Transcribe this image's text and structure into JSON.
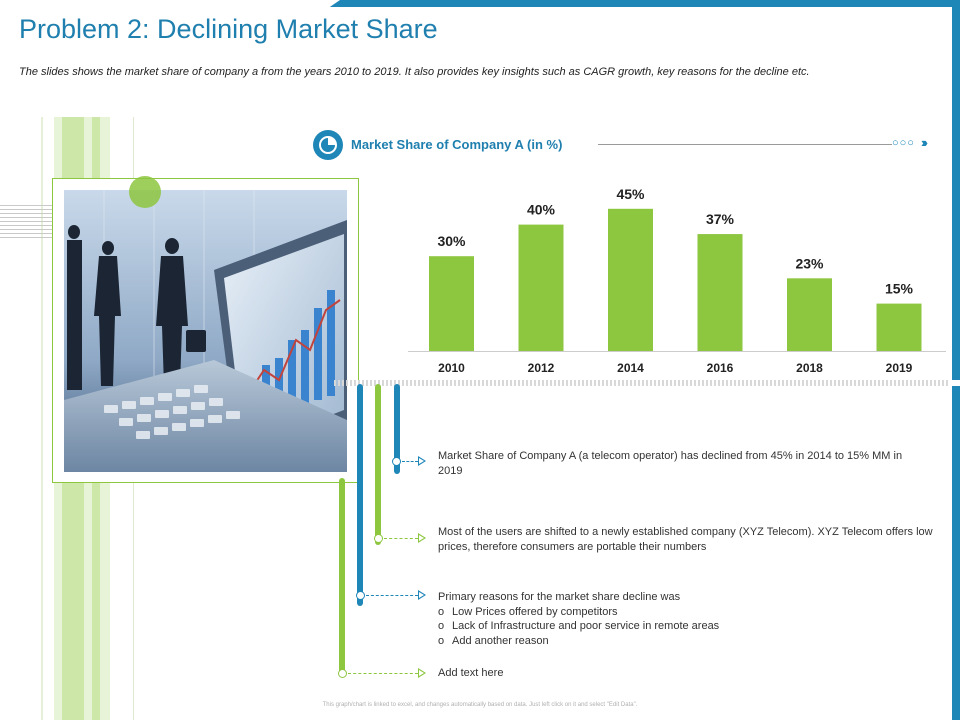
{
  "slide": {
    "title": "Problem 2: Declining Market Share",
    "subtitle": "The slides shows the market share of company a from the years 2010 to 2019. It also provides key insights such as CAGR growth, key reasons for the decline etc.",
    "footnote": "This graph/chart is linked to excel, and changes automatically based on data. Just left click on it and select \"Edit Data\"."
  },
  "chart_header": {
    "title": "Market Share of Company A (in %)",
    "dots": "○○○",
    "chevrons": "›››"
  },
  "chart_data": {
    "type": "bar",
    "title": "Market Share of Company A (in %)",
    "categories": [
      "2010",
      "2012",
      "2014",
      "2016",
      "2018",
      "2019"
    ],
    "values": [
      30,
      40,
      45,
      37,
      23,
      15
    ],
    "value_labels": [
      "30%",
      "40%",
      "45%",
      "37%",
      "23%",
      "15%"
    ],
    "ylim": [
      0,
      50
    ],
    "grid": false,
    "legend": "none",
    "bar_color": "#8dc63f"
  },
  "notes": {
    "n1": "Market Share of Company A (a telecom operator) has declined from 45% in 2014 to 15% MM in 2019",
    "n2": "Most of the users are shifted to a newly established company (XYZ Telecom). XYZ Telecom offers low prices, therefore consumers are portable their numbers",
    "n3_intro": "Primary reasons for the market share decline was",
    "n3_items": [
      "Low Prices offered by competitors",
      "Lack of Infrastructure and poor service in remote areas",
      "Add another reason"
    ],
    "n4": "Add text here"
  },
  "colors": {
    "blue": "#1f86b8",
    "green": "#8dc63f"
  }
}
